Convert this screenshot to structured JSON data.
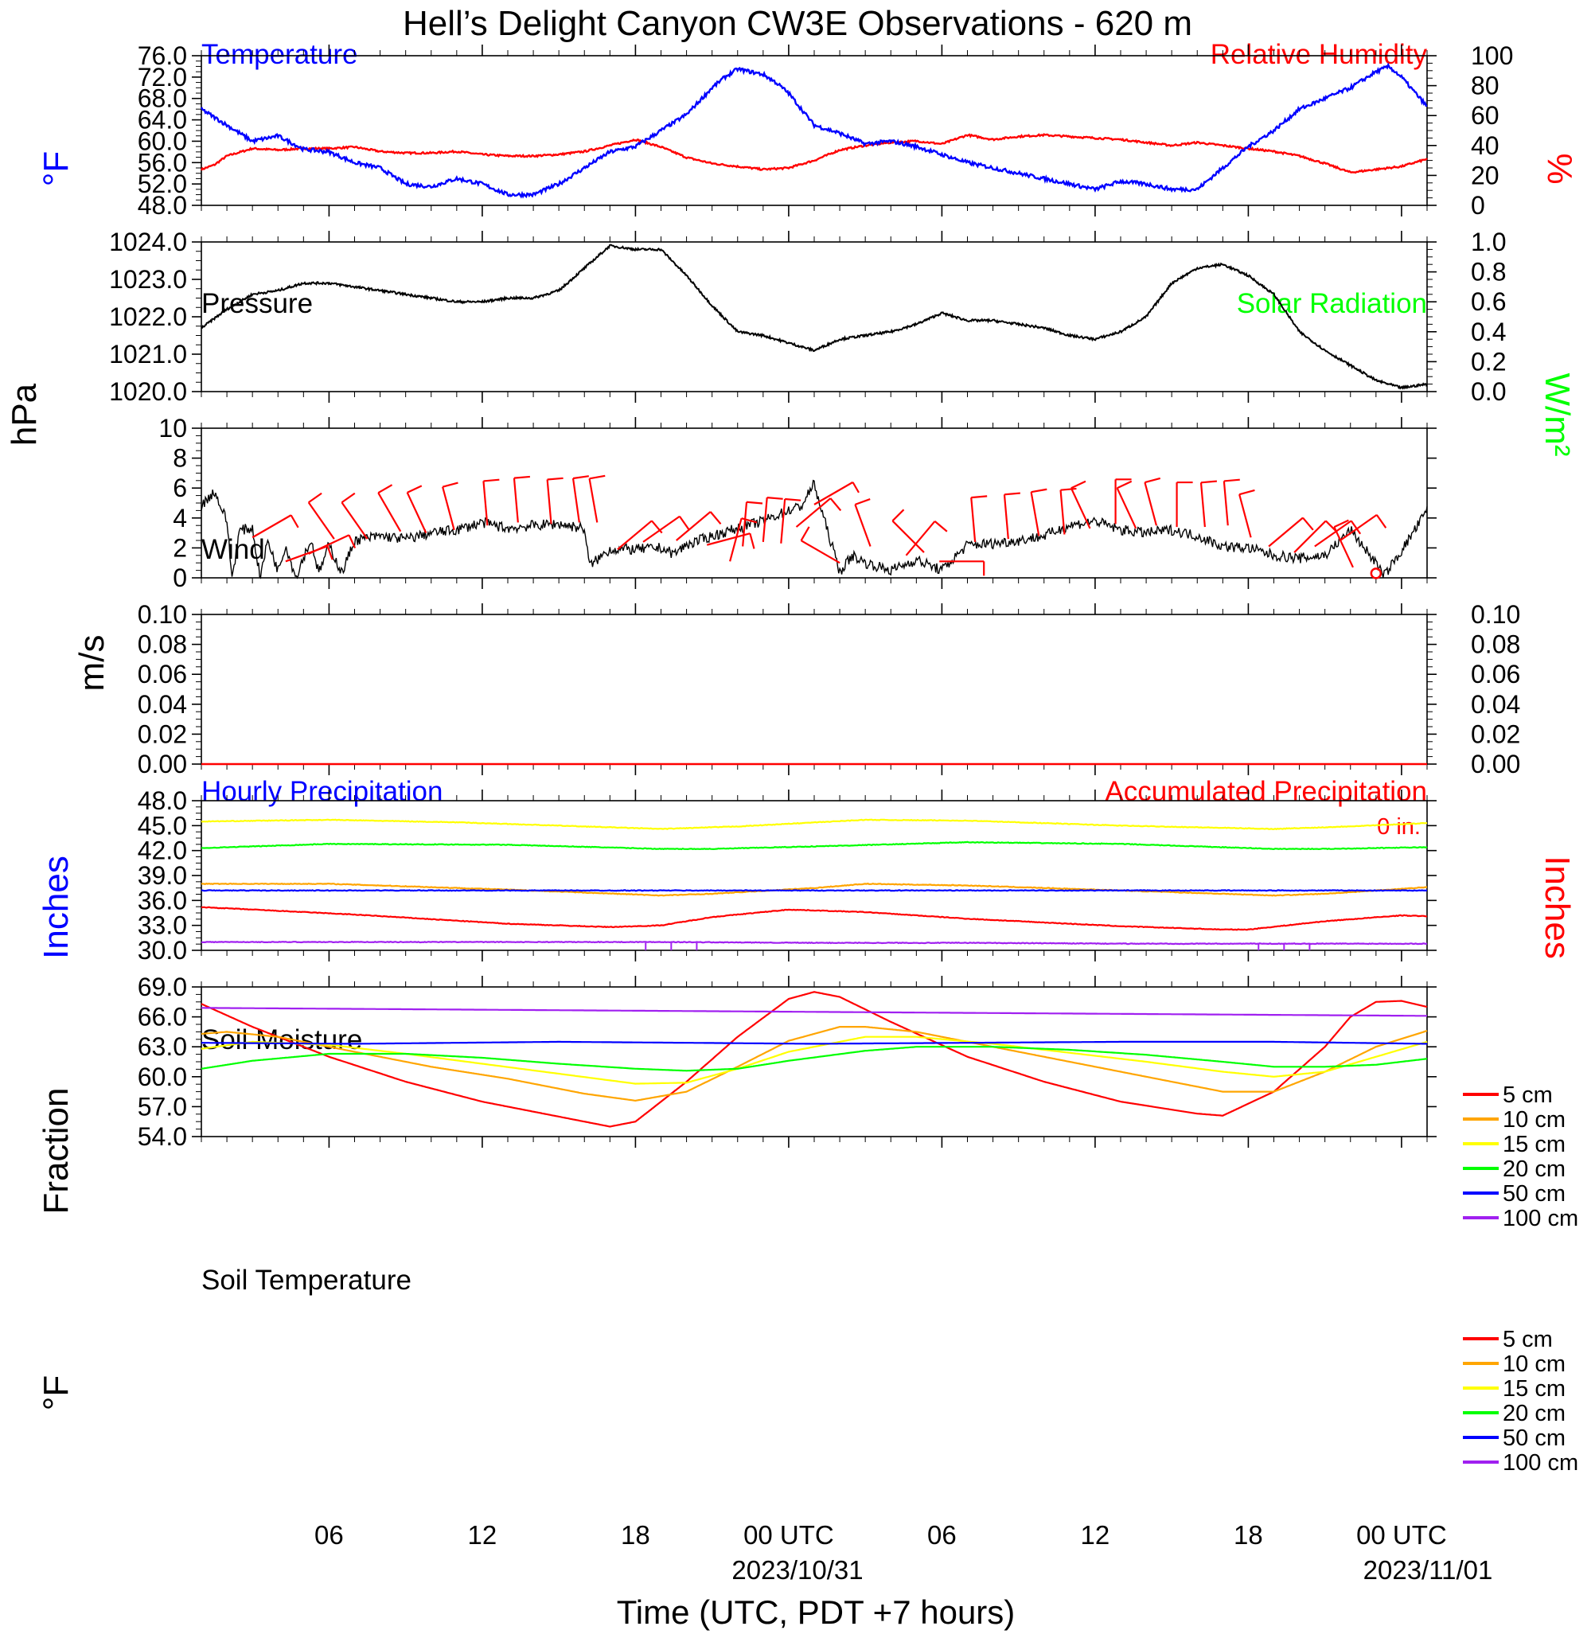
{
  "title": "Hell’s Delight Canyon CW3E Observations - 620 m",
  "x_axis": {
    "label": "Time (UTC, PDT +7 hours)",
    "ticks": [
      "06",
      "12",
      "18",
      "00 UTC",
      "06",
      "12",
      "18",
      "00 UTC"
    ],
    "dates": [
      "2023/10/31",
      "2023/11/01"
    ]
  },
  "colors": {
    "temperature": "#0000ff",
    "humidity": "#ff0000",
    "pressure": "#000000",
    "solar": "#00ff00",
    "wind": "#000000",
    "barb": "#ff0000",
    "hourly_precip": "#0000ff",
    "accum_precip": "#ff0000",
    "5cm": "#ff0000",
    "10cm": "#ffa500",
    "15cm": "#ffff00",
    "20cm": "#00ff00",
    "50cm": "#0000ff",
    "100cm": "#a020f0"
  },
  "panels": {
    "temp": {
      "left_title": "Temperature",
      "right_title": "Relative Humidity",
      "left_unit": "°F",
      "right_unit": "%",
      "left_ticks": [
        "76.0",
        "72.0",
        "68.0",
        "64.0",
        "60.0",
        "56.0",
        "52.0",
        "48.0"
      ],
      "right_ticks": [
        "100",
        "80",
        "60",
        "40",
        "20",
        "0"
      ]
    },
    "pressure": {
      "left_title": "Pressure",
      "right_title": "Solar Radiation",
      "left_unit": "hPa",
      "right_unit": "W/m²",
      "left_ticks": [
        "1024.0",
        "1023.0",
        "1022.0",
        "1021.0",
        "1020.0"
      ],
      "right_ticks": [
        "1.0",
        "0.8",
        "0.6",
        "0.4",
        "0.2",
        "0.0"
      ]
    },
    "wind": {
      "left_title": "Wind",
      "left_unit": "m/s",
      "left_ticks": [
        "10",
        "8",
        "6",
        "4",
        "2",
        "0"
      ]
    },
    "precip": {
      "left_title": "Hourly Precipitation",
      "right_title": "Accumulated Precipitation",
      "left_unit": "Inches",
      "right_unit": "Inches",
      "total_label": "0 in.",
      "left_ticks": [
        "0.10",
        "0.08",
        "0.06",
        "0.04",
        "0.02",
        "0.00"
      ],
      "right_ticks": [
        "0.10",
        "0.08",
        "0.06",
        "0.04",
        "0.02",
        "0.00"
      ]
    },
    "soil_moisture": {
      "left_title": "Soil Moisture",
      "left_unit": "Fraction",
      "left_ticks": [
        "48.0",
        "45.0",
        "42.0",
        "39.0",
        "36.0",
        "33.0",
        "30.0"
      ],
      "legend": [
        "5 cm",
        "10 cm",
        "15 cm",
        "20 cm",
        "50 cm",
        "100 cm"
      ]
    },
    "soil_temp": {
      "left_title": "Soil Temperature",
      "left_unit": "°F",
      "left_ticks": [
        "69.0",
        "66.0",
        "63.0",
        "60.0",
        "57.0",
        "54.0"
      ],
      "legend": [
        "5 cm",
        "10 cm",
        "15 cm",
        "20 cm",
        "50 cm",
        "100 cm"
      ]
    }
  },
  "chart_data": [
    {
      "type": "line",
      "panel": "temp",
      "x_unit": "hours since 2023-10-30 01:00 UTC",
      "xlim": [
        0,
        48
      ],
      "series": [
        {
          "name": "Temperature",
          "axis": "left",
          "ylim": [
            48,
            76
          ],
          "x": [
            0,
            1,
            2,
            3,
            4,
            5,
            6,
            7,
            8,
            9,
            10,
            11,
            12,
            13,
            14,
            15,
            16,
            17,
            18,
            19,
            20,
            20.5,
            21,
            22,
            22.5,
            23,
            24,
            25,
            26,
            27,
            28,
            29,
            30,
            31,
            32,
            33,
            34,
            35,
            36,
            37,
            38,
            39,
            40,
            41,
            42,
            43,
            44,
            45,
            46,
            46.5,
            47,
            48
          ],
          "values": [
            66,
            63,
            60,
            61,
            58.5,
            58,
            56,
            55,
            52,
            51.5,
            53,
            52,
            50,
            50,
            52,
            55,
            58,
            59,
            62,
            65,
            70,
            72,
            73.5,
            72.5,
            71,
            69,
            63,
            61.5,
            59.5,
            60,
            59,
            57.5,
            56,
            55,
            54,
            53,
            52,
            51,
            52.5,
            52,
            51,
            51,
            55,
            59,
            62,
            66,
            68,
            70,
            73,
            74,
            72,
            66.5
          ]
        },
        {
          "name": "Relative Humidity",
          "axis": "right",
          "ylim": [
            0,
            100
          ],
          "x": [
            0,
            0.5,
            1,
            2,
            3,
            4,
            5,
            6,
            7,
            8,
            9,
            10,
            11,
            12,
            13,
            14,
            15,
            16,
            17,
            18,
            19,
            20,
            21,
            22,
            23,
            24,
            25,
            26,
            27,
            28,
            29,
            30,
            31,
            32,
            33,
            34,
            35,
            36,
            37,
            38,
            39,
            40,
            41,
            42,
            43,
            44,
            45,
            46,
            47,
            48
          ],
          "values": [
            24,
            27,
            33,
            38,
            37,
            38,
            38,
            39,
            36,
            35,
            35,
            36,
            34,
            33,
            33,
            34,
            36,
            40,
            44,
            39,
            32,
            28,
            26,
            24,
            25,
            30,
            37,
            40,
            42,
            43,
            41,
            47,
            44,
            46,
            47,
            46,
            45,
            44,
            42,
            40,
            42,
            40,
            38,
            36,
            33,
            28,
            22,
            24,
            26,
            31
          ]
        }
      ]
    },
    {
      "type": "line",
      "panel": "pressure",
      "x_unit": "hours since 2023-10-30 01:00 UTC",
      "xlim": [
        0,
        48
      ],
      "series": [
        {
          "name": "Pressure",
          "axis": "left",
          "ylim": [
            1020,
            1024
          ],
          "x": [
            0,
            1,
            2,
            3,
            4,
            5,
            6,
            7,
            8,
            9,
            10,
            11,
            12,
            13,
            14,
            15,
            16,
            17,
            18,
            19,
            20,
            21,
            22,
            23,
            24,
            25,
            26,
            27,
            28,
            29,
            30,
            31,
            32,
            33,
            34,
            35,
            36,
            37,
            38,
            39,
            40,
            41,
            42,
            43,
            44,
            45,
            46,
            47,
            48
          ],
          "values": [
            1021.7,
            1022.2,
            1022.6,
            1022.7,
            1022.9,
            1022.9,
            1022.8,
            1022.7,
            1022.6,
            1022.5,
            1022.4,
            1022.4,
            1022.5,
            1022.5,
            1022.7,
            1023.3,
            1023.9,
            1023.8,
            1023.8,
            1023.1,
            1022.3,
            1021.6,
            1021.5,
            1021.3,
            1021.1,
            1021.4,
            1021.5,
            1021.6,
            1021.8,
            1022.1,
            1021.9,
            1021.9,
            1021.8,
            1021.7,
            1021.5,
            1021.4,
            1021.6,
            1022.0,
            1022.9,
            1023.3,
            1023.4,
            1023.1,
            1022.6,
            1021.6,
            1021.1,
            1020.7,
            1020.3,
            1020.1,
            1020.2
          ]
        }
      ]
    },
    {
      "type": "line",
      "panel": "wind",
      "x_unit": "hours since 2023-10-30 01:00 UTC",
      "xlim": [
        0,
        48
      ],
      "ylim": [
        0,
        10
      ],
      "series": [
        {
          "name": "Wind speed",
          "x": [
            0,
            0.5,
            1,
            1.2,
            1.5,
            2,
            2.3,
            2.6,
            3,
            3.3,
            3.7,
            4,
            4.3,
            4.6,
            5,
            5.5,
            6,
            7,
            8,
            9,
            10,
            11,
            12,
            13,
            14,
            15,
            15.2,
            16,
            17,
            18,
            18.5,
            19,
            20,
            21,
            22,
            23,
            23.5,
            24,
            24.2,
            25,
            25.5,
            26,
            27,
            28,
            29,
            30,
            31,
            32,
            33,
            34,
            35,
            36,
            37,
            38,
            39,
            40,
            41,
            42,
            43,
            44,
            45,
            46,
            46.3,
            47,
            48
          ],
          "values": [
            4.8,
            5.8,
            3.8,
            0,
            3.2,
            3.3,
            0,
            2.5,
            0.5,
            2.2,
            0,
            1.4,
            2.5,
            0.3,
            2.2,
            0.3,
            2.5,
            2.8,
            2.6,
            3.0,
            3.2,
            3.7,
            3.3,
            3.5,
            3.6,
            3.3,
            0.8,
            1.9,
            1.9,
            2.0,
            1.6,
            2.2,
            2.8,
            3.3,
            3.8,
            4.5,
            4.8,
            6.3,
            5.0,
            0.4,
            1.5,
            1.0,
            0.5,
            1.2,
            0.5,
            2.2,
            2.3,
            2.5,
            2.8,
            3.5,
            3.8,
            3.2,
            3.0,
            3.2,
            2.8,
            2.1,
            2.0,
            1.5,
            1.3,
            1.5,
            3.2,
            1.0,
            0.1,
            1.8,
            4.5
          ]
        }
      ]
    },
    {
      "type": "line",
      "panel": "precip",
      "x_unit": "hours since 2023-10-30 01:00 UTC",
      "xlim": [
        0,
        48
      ],
      "series": [
        {
          "name": "Hourly Precipitation",
          "axis": "left",
          "ylim": [
            0,
            0.1
          ],
          "x": [
            0,
            48
          ],
          "values": [
            0,
            0
          ]
        },
        {
          "name": "Accumulated Precipitation",
          "axis": "right",
          "ylim": [
            0,
            0.1
          ],
          "x": [
            0,
            48
          ],
          "values": [
            0,
            0
          ]
        }
      ]
    },
    {
      "type": "line",
      "panel": "soil_moisture",
      "x_unit": "hours since 2023-10-30 01:00 UTC",
      "xlim": [
        0,
        48
      ],
      "ylim": [
        30,
        48
      ],
      "series": [
        {
          "name": "5 cm",
          "x": [
            0,
            6,
            12,
            16,
            18,
            20,
            23,
            26,
            30,
            36,
            40,
            41,
            44,
            47,
            48
          ],
          "values": [
            35.2,
            34.3,
            33.2,
            32.8,
            33.0,
            34.0,
            34.9,
            34.6,
            33.8,
            32.9,
            32.5,
            32.5,
            33.5,
            34.2,
            34.1
          ]
        },
        {
          "name": "10 cm",
          "x": [
            0,
            5,
            12,
            18,
            20,
            24,
            26,
            30,
            36,
            42,
            44,
            48
          ],
          "values": [
            38.0,
            38.0,
            37.3,
            36.6,
            36.8,
            37.5,
            38.0,
            37.8,
            37.2,
            36.6,
            36.8,
            37.6
          ]
        },
        {
          "name": "15 cm",
          "x": [
            0,
            5,
            10,
            18,
            21,
            26,
            30,
            36,
            42,
            44,
            48
          ],
          "values": [
            45.5,
            45.7,
            45.4,
            44.6,
            44.9,
            45.7,
            45.6,
            45.0,
            44.6,
            44.8,
            45.3
          ]
        },
        {
          "name": "20 cm",
          "x": [
            0,
            5,
            12,
            18,
            20,
            24,
            30,
            36,
            42,
            44,
            48
          ],
          "values": [
            42.3,
            42.8,
            42.7,
            42.2,
            42.2,
            42.5,
            43.0,
            42.8,
            42.2,
            42.2,
            42.4
          ]
        },
        {
          "name": "50 cm",
          "x": [
            0,
            24,
            48
          ],
          "values": [
            37.2,
            37.2,
            37.2
          ]
        },
        {
          "name": "100 cm",
          "x": [
            0,
            18,
            24,
            30,
            36,
            42,
            48
          ],
          "values": [
            31.0,
            31.0,
            30.9,
            30.9,
            30.8,
            30.8,
            30.8
          ]
        }
      ]
    },
    {
      "type": "line",
      "panel": "soil_temp",
      "x_unit": "hours since 2023-10-30 01:00 UTC",
      "xlim": [
        0,
        48
      ],
      "ylim": [
        54,
        69
      ],
      "series": [
        {
          "name": "5 cm",
          "x": [
            0,
            2,
            5,
            8,
            11,
            14,
            16,
            17,
            19,
            21,
            23,
            24,
            25,
            27,
            30,
            33,
            36,
            39,
            40,
            42,
            44,
            45,
            46,
            47,
            48
          ],
          "values": [
            67.3,
            65.0,
            62.0,
            59.5,
            57.5,
            56.0,
            55.0,
            55.5,
            59.5,
            64.0,
            67.8,
            68.5,
            68.0,
            65.5,
            62.0,
            59.5,
            57.5,
            56.3,
            56.1,
            58.5,
            63.0,
            66.0,
            67.5,
            67.6,
            67.0
          ]
        },
        {
          "name": "10 cm",
          "x": [
            0,
            1,
            3,
            6,
            9,
            12,
            15,
            17,
            19,
            21,
            23,
            25,
            26,
            28,
            31,
            34,
            37,
            40,
            42,
            44,
            46,
            48
          ],
          "values": [
            64.3,
            64.5,
            64.0,
            62.5,
            61.0,
            59.8,
            58.3,
            57.6,
            58.5,
            61.0,
            63.6,
            65.0,
            65.0,
            64.5,
            63.0,
            61.5,
            60.0,
            58.5,
            58.5,
            60.5,
            63.0,
            64.6
          ]
        },
        {
          "name": "15 cm",
          "x": [
            0,
            2,
            5,
            8,
            11,
            14,
            17,
            19,
            21,
            23,
            26,
            28,
            31,
            34,
            37,
            40,
            42,
            44,
            46,
            48
          ],
          "values": [
            62.8,
            63.5,
            63.2,
            62.3,
            61.3,
            60.3,
            59.3,
            59.4,
            60.8,
            62.5,
            64.0,
            64.0,
            63.3,
            62.4,
            61.5,
            60.5,
            60.0,
            60.5,
            62.0,
            63.5
          ]
        },
        {
          "name": "20 cm",
          "x": [
            0,
            2,
            5,
            8,
            11,
            14,
            17,
            19,
            21,
            23,
            26,
            28,
            31,
            34,
            37,
            40,
            42,
            44,
            46,
            48
          ],
          "values": [
            60.8,
            61.6,
            62.3,
            62.3,
            61.9,
            61.3,
            60.8,
            60.6,
            60.8,
            61.6,
            62.6,
            63.0,
            63.0,
            62.7,
            62.2,
            61.5,
            61.0,
            61.0,
            61.2,
            61.8
          ]
        },
        {
          "name": "50 cm",
          "x": [
            0,
            6,
            14,
            24,
            30,
            36,
            42,
            48
          ],
          "values": [
            63.4,
            63.3,
            63.5,
            63.3,
            63.4,
            63.5,
            63.5,
            63.3
          ]
        },
        {
          "name": "100 cm",
          "x": [
            0,
            24,
            48
          ],
          "values": [
            66.9,
            66.5,
            66.1
          ]
        }
      ]
    }
  ]
}
